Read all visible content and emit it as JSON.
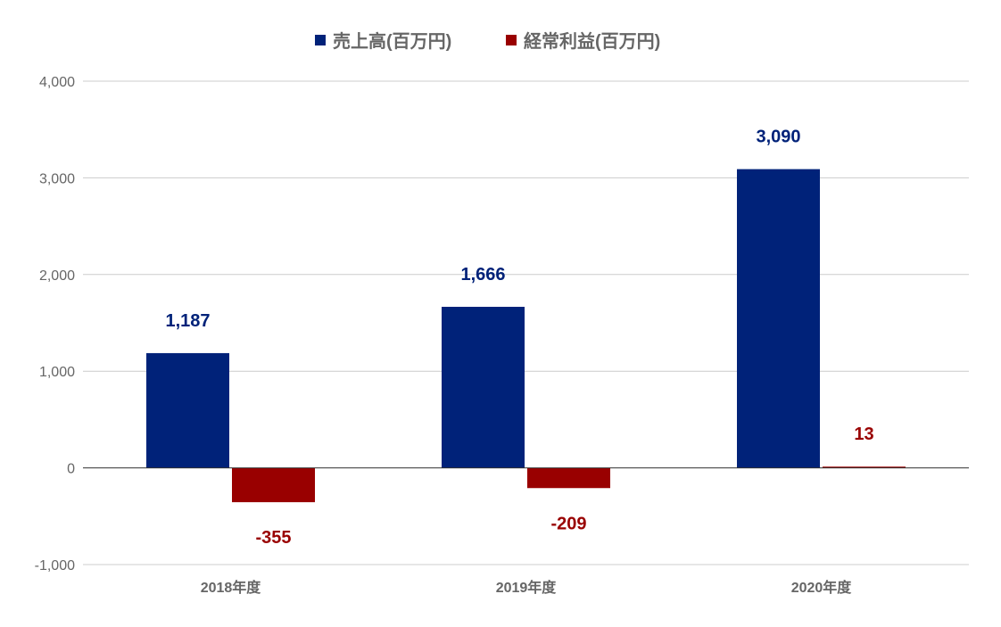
{
  "chart_data": {
    "type": "bar",
    "categories": [
      "2018年度",
      "2019年度",
      "2020年度"
    ],
    "series": [
      {
        "name": "売上高(百万円)",
        "values": [
          1187,
          1666,
          3090
        ],
        "labels": [
          "1,187",
          "1,666",
          "3,090"
        ],
        "color": "#002279"
      },
      {
        "name": "経常利益(百万円)",
        "values": [
          -355,
          -209,
          13
        ],
        "labels": [
          "-355",
          "-209",
          "13"
        ],
        "color": "#990000"
      }
    ],
    "ylim": [
      -1000,
      4000
    ],
    "yticks": [
      "-1,000",
      "0",
      "1,000",
      "2,000",
      "3,000",
      "4,000"
    ],
    "ytick_values": [
      -1000,
      0,
      1000,
      2000,
      3000,
      4000
    ],
    "legend": "top",
    "grid": true
  }
}
